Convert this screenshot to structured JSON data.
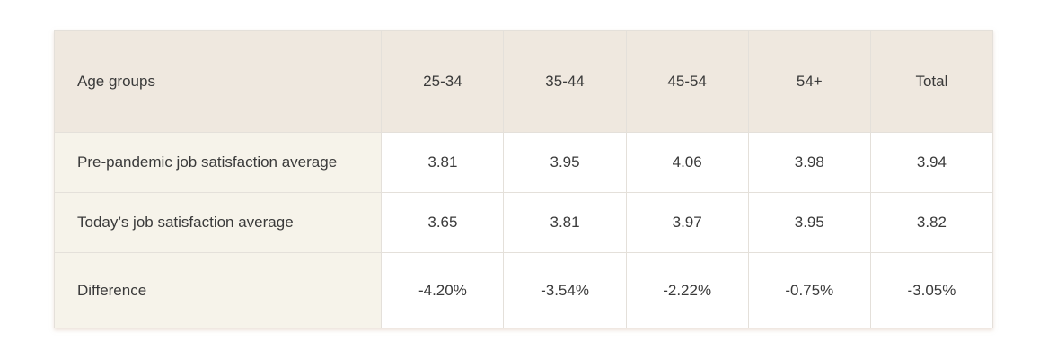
{
  "table": {
    "headers": [
      "Age groups",
      "25-34",
      "35-44",
      "45-54",
      "54+",
      "Total"
    ],
    "rows": [
      {
        "label": "Pre-pandemic job satisfaction average",
        "values": [
          "3.81",
          "3.95",
          "4.06",
          "3.98",
          "3.94"
        ]
      },
      {
        "label": "Today’s job satisfaction average",
        "values": [
          "3.65",
          "3.81",
          "3.97",
          "3.95",
          "3.82"
        ]
      },
      {
        "label": "Difference",
        "values": [
          "-4.20%",
          "-3.54%",
          "-2.22%",
          "-0.75%",
          "-3.05%"
        ]
      }
    ]
  },
  "colors": {
    "header_bg": "#efe8df",
    "label_col_bg": "#f6f3ea",
    "cell_bg": "#ffffff",
    "border": "#e4e0da",
    "text": "#3a3a3a"
  }
}
